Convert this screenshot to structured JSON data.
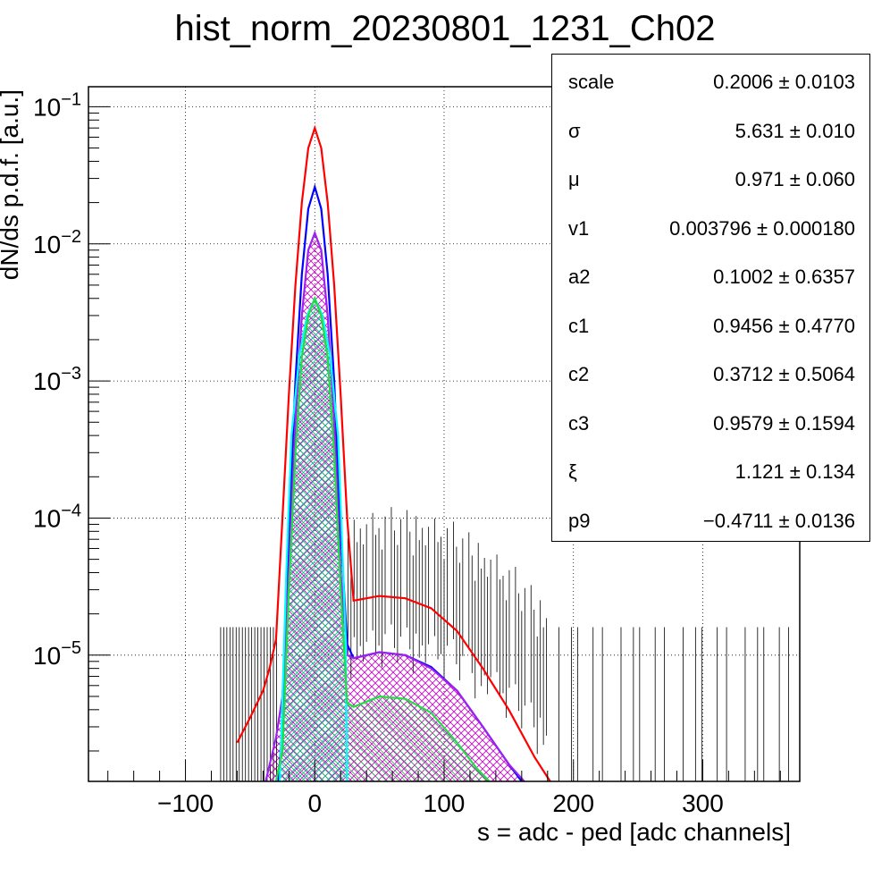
{
  "title": "hist_norm_20230801_1231_Ch02",
  "chart_data": {
    "type": "line",
    "title": "hist_norm_20230801_1231_Ch02",
    "xlabel": "s = adc - ped [adc channels]",
    "ylabel": "dN/ds p.d.f. [a.u.]",
    "xlim": [
      -175,
      375
    ],
    "ylim": [
      1.2e-06,
      0.14
    ],
    "y_scale": "log",
    "grid": true,
    "x_ticks": [
      -100,
      0,
      100,
      200,
      300
    ],
    "x_tick_labels": [
      "−100",
      "0",
      "100",
      "200",
      "300"
    ],
    "y_ticks": [
      {
        "value": 0.1,
        "base": "10",
        "exp": "−1"
      },
      {
        "value": 0.01,
        "base": "10",
        "exp": "−2"
      },
      {
        "value": 0.001,
        "base": "10",
        "exp": "−3"
      },
      {
        "value": 0.0001,
        "base": "10",
        "exp": "−4"
      },
      {
        "value": 1e-05,
        "base": "10",
        "exp": "−5"
      }
    ],
    "series": [
      {
        "color": "#ff0000",
        "x": [
          -60,
          -50,
          -40,
          -35,
          -30,
          -25,
          -20,
          -15,
          -10,
          -5,
          0,
          5,
          10,
          15,
          20,
          25,
          30,
          50,
          70,
          90,
          110,
          130,
          150,
          170,
          182
        ],
        "y": [
          2.3e-06,
          3.5e-06,
          5.5e-06,
          8e-06,
          1.3e-05,
          0.0001,
          0.0008,
          0.005,
          0.02,
          0.05,
          0.07,
          0.05,
          0.02,
          0.005,
          0.0008,
          0.0001,
          2.5e-05,
          2.7e-05,
          2.6e-05,
          2.2e-05,
          1.5e-05,
          8e-06,
          4e-06,
          1.8e-06,
          1.2e-06
        ]
      },
      {
        "color": "#0000ff",
        "x": [
          -28,
          -25,
          -20,
          -15,
          -10,
          -5,
          0,
          5,
          10,
          15,
          20,
          25,
          30,
          50,
          70,
          90,
          110,
          130,
          150,
          160
        ],
        "y": [
          1.2e-06,
          3e-06,
          8e-05,
          0.001,
          0.006,
          0.018,
          0.026,
          0.018,
          0.006,
          0.001,
          8e-05,
          1.2e-05,
          9.5e-06,
          1.05e-05,
          1e-05,
          8.2e-06,
          5.5e-06,
          3e-06,
          1.6e-06,
          1.2e-06
        ]
      },
      {
        "color": "#a020f0",
        "fill": "hatch-magenta",
        "x": [
          -38,
          -30,
          -25,
          -20,
          -15,
          -10,
          -5,
          0,
          5,
          10,
          15,
          20,
          25,
          30,
          50,
          70,
          90,
          110,
          130,
          150,
          162
        ],
        "y": [
          1.2e-06,
          2.5e-06,
          5e-06,
          4e-05,
          0.0005,
          0.003,
          0.009,
          0.012,
          0.009,
          0.003,
          0.0005,
          4e-05,
          1e-05,
          9.5e-06,
          1.05e-05,
          1e-05,
          8e-06,
          5.5e-06,
          3e-06,
          1.6e-06,
          1.2e-06
        ]
      },
      {
        "color": "#00ffff",
        "fill": "hatch-cyan",
        "x": [
          -27,
          -22,
          -18,
          -12,
          -6,
          0,
          6,
          12,
          18,
          22,
          24,
          25
        ],
        "y": [
          1.2e-06,
          4e-05,
          0.0004,
          0.0015,
          0.003,
          0.004,
          0.003,
          0.0015,
          0.0004,
          4e-05,
          1.2e-05,
          1.2e-06
        ]
      },
      {
        "color": "#22dd44",
        "fill": "hatch-green",
        "x": [
          -30,
          -25,
          -20,
          -15,
          -10,
          -5,
          0,
          5,
          10,
          15,
          20,
          25,
          30,
          50,
          70,
          90,
          110,
          125,
          135
        ],
        "y": [
          1.2e-06,
          2e-06,
          3e-05,
          0.0003,
          0.0015,
          0.003,
          0.004,
          0.003,
          0.0015,
          0.0003,
          3e-05,
          4.5e-06,
          4.2e-06,
          5e-06,
          4.8e-06,
          3.8e-06,
          2.3e-06,
          1.5e-06,
          1.2e-06
        ]
      }
    ],
    "legend": "top-right",
    "stats": [
      {
        "name": "scale",
        "value": "0.2006",
        "error": "0.0103"
      },
      {
        "name": "σ",
        "value": "5.631",
        "error": "0.010"
      },
      {
        "name": "μ",
        "value": "0.971",
        "error": "0.060"
      },
      {
        "name": "v1",
        "value": "0.003796",
        "error": "0.000180"
      },
      {
        "name": "a2",
        "value": "0.1002",
        "error": "0.6357"
      },
      {
        "name": "c1",
        "value": "0.9456",
        "error": "0.4770"
      },
      {
        "name": "c2",
        "value": "0.3712",
        "error": "0.5064"
      },
      {
        "name": "c3",
        "value": "0.9579",
        "error": "0.1594"
      },
      {
        "name": "ξ",
        "value": "1.121",
        "error": "0.134"
      },
      {
        "name": "p9",
        "value": "−0.4711",
        "error": "0.0136"
      }
    ]
  }
}
